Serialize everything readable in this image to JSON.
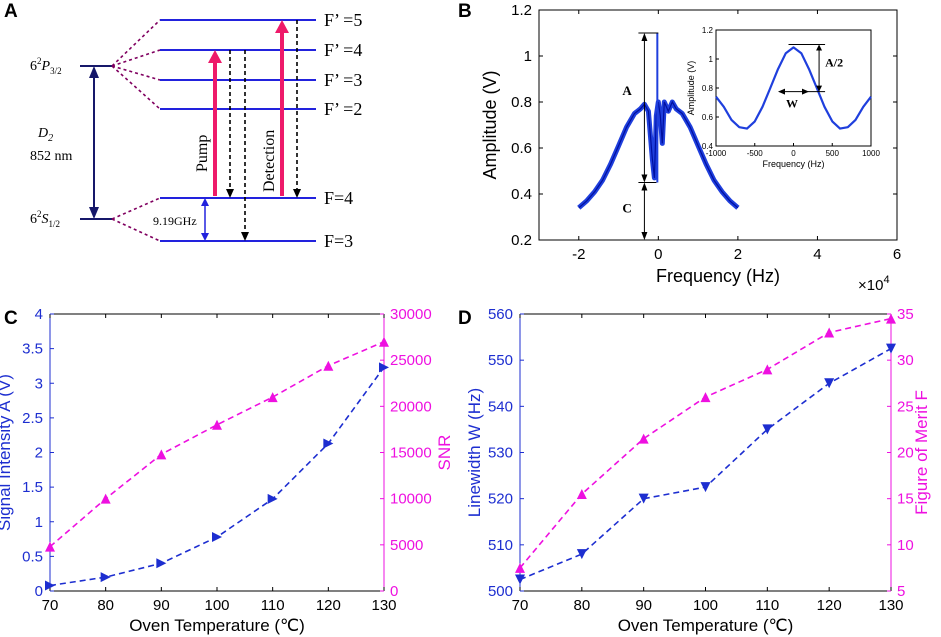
{
  "panels": {
    "A": {
      "letter": "A",
      "upper_state": {
        "n": "6",
        "sup": "2",
        "L": "P",
        "sub": "3/2"
      },
      "lower_state": {
        "n": "6",
        "sup": "2",
        "L": "S",
        "sub": "1/2"
      },
      "d2_label": "D",
      "d2_sub": "2",
      "d2_wavelength": "852 nm",
      "hyperfine_splitting": "9.19GHz",
      "upper_levels": [
        "F’ =5",
        "F’ =4",
        "F’ =3",
        "F’ =2"
      ],
      "lower_levels": [
        "F=4",
        "F=3"
      ],
      "pump_label": "Pump",
      "detection_label": "Detection",
      "colors": {
        "level": "#2222dd",
        "dash": "#800060",
        "pump": "#ee1a6a",
        "d2_arrow": "#16186a"
      }
    },
    "B": {
      "letter": "B",
      "multiplier": "×10",
      "multiplier_exp": "4",
      "label_A": "A",
      "label_C": "C",
      "inset_label_half": "A/2",
      "inset_label_w": "W"
    },
    "C": {
      "letter": "C"
    },
    "D": {
      "letter": "D"
    }
  },
  "chart_data": [
    {
      "panel": "B",
      "type": "line",
      "title": "",
      "xlabel": "Frequency (Hz)",
      "ylabel": "Amplitude (V)",
      "xlim": [
        -3,
        6
      ],
      "ylim": [
        0.2,
        1.2
      ],
      "xticks": [
        "-2",
        "0",
        "2",
        "4",
        "6"
      ],
      "yticks": [
        "0.2",
        "0.4",
        "0.6",
        "0.8",
        "1",
        "1.2"
      ],
      "x_multiplier": "×10^4",
      "series": [
        {
          "name": "Amplitude",
          "color": "#1f3fdd",
          "x": [
            -2.0,
            -1.8,
            -1.6,
            -1.4,
            -1.2,
            -1.0,
            -0.8,
            -0.6,
            -0.45,
            -0.35,
            -0.25,
            -0.15,
            -0.1,
            -0.05,
            0.0,
            0.05,
            0.1,
            0.15,
            0.25,
            0.35,
            0.45,
            0.6,
            0.8,
            1.0,
            1.2,
            1.4,
            1.6,
            1.8,
            2.0
          ],
          "y": [
            0.34,
            0.37,
            0.41,
            0.46,
            0.53,
            0.61,
            0.69,
            0.75,
            0.77,
            0.79,
            0.76,
            0.55,
            0.47,
            0.74,
            0.8,
            0.74,
            0.62,
            0.8,
            0.76,
            0.8,
            0.77,
            0.75,
            0.69,
            0.61,
            0.53,
            0.46,
            0.41,
            0.37,
            0.34
          ]
        }
      ],
      "annotations": [
        {
          "label": "A",
          "from": 0.45,
          "to": 1.1
        },
        {
          "label": "C",
          "from": 0.2,
          "to": 0.45
        }
      ]
    },
    {
      "panel": "B-inset",
      "type": "line",
      "xlabel": "Frequency (Hz)",
      "ylabel": "Amplitude (V)",
      "xlim": [
        -1000,
        1000
      ],
      "ylim": [
        0.4,
        1.2
      ],
      "xticks": [
        "-1000",
        "-500",
        "0",
        "500",
        "1000"
      ],
      "yticks": [
        "0.4",
        "0.6",
        "0.8",
        "1",
        "1.2"
      ],
      "series": [
        {
          "name": "Amplitude",
          "color": "#1f3fdd",
          "x": [
            -1000,
            -900,
            -800,
            -700,
            -600,
            -500,
            -400,
            -300,
            -200,
            -100,
            0,
            100,
            200,
            300,
            400,
            500,
            600,
            700,
            800,
            900,
            1000
          ],
          "y": [
            0.74,
            0.67,
            0.58,
            0.53,
            0.52,
            0.57,
            0.67,
            0.8,
            0.93,
            1.04,
            1.08,
            1.04,
            0.93,
            0.8,
            0.67,
            0.57,
            0.52,
            0.53,
            0.58,
            0.67,
            0.74
          ]
        }
      ],
      "annotations": [
        {
          "label": "A/2",
          "from": 0.775,
          "to": 1.1
        },
        {
          "label": "W",
          "from": -200,
          "to": 200
        }
      ]
    },
    {
      "panel": "C",
      "type": "line",
      "xlabel": "Oven Temperature (℃)",
      "ylabel": "Signal Intensity A (V)",
      "ylabel_right": "SNR",
      "xlim": [
        70,
        130
      ],
      "ylim": [
        0,
        4
      ],
      "ylim_right": [
        0,
        30000
      ],
      "xticks": [
        "70",
        "80",
        "90",
        "100",
        "110",
        "120",
        "130"
      ],
      "yticks": [
        "0",
        "0.5",
        "1",
        "1.5",
        "2",
        "2.5",
        "3",
        "3.5",
        "4"
      ],
      "yticks_right": [
        "0",
        "5000",
        "10000",
        "15000",
        "20000",
        "25000",
        "30000"
      ],
      "series": [
        {
          "name": "Signal Intensity A",
          "axis": "left",
          "color": "#1d2ed0",
          "marker": "triangle-right",
          "x": [
            70,
            80,
            90,
            100,
            110,
            120,
            130
          ],
          "y": [
            0.08,
            0.2,
            0.4,
            0.78,
            1.33,
            2.13,
            3.23
          ]
        },
        {
          "name": "SNR",
          "axis": "right",
          "color": "#ee10e0",
          "marker": "triangle-up",
          "x": [
            70,
            80,
            90,
            100,
            110,
            120,
            130
          ],
          "y": [
            4800,
            10000,
            14800,
            18000,
            21000,
            24400,
            27000
          ]
        }
      ]
    },
    {
      "panel": "D",
      "type": "line",
      "xlabel": "Oven Temperature (℃)",
      "ylabel": "Linewidth W (Hz)",
      "ylabel_right": "Figure of Merit F",
      "xlim": [
        70,
        130
      ],
      "ylim": [
        500,
        560
      ],
      "ylim_right": [
        5,
        35
      ],
      "xticks": [
        "70",
        "80",
        "90",
        "100",
        "110",
        "120",
        "130"
      ],
      "yticks": [
        "500",
        "510",
        "520",
        "530",
        "540",
        "550",
        "560"
      ],
      "yticks_right": [
        "5",
        "10",
        "15",
        "20",
        "25",
        "30",
        "35"
      ],
      "series": [
        {
          "name": "Linewidth W",
          "axis": "left",
          "color": "#1d2ed0",
          "marker": "triangle-down",
          "x": [
            70,
            80,
            90,
            100,
            110,
            120,
            130
          ],
          "y": [
            502.5,
            508.0,
            520.0,
            522.5,
            535.0,
            545.0,
            552.5
          ]
        },
        {
          "name": "Figure of Merit F",
          "axis": "right",
          "color": "#ee10e0",
          "marker": "triangle-up",
          "x": [
            70,
            80,
            90,
            100,
            110,
            120,
            130
          ],
          "y": [
            7.5,
            15.5,
            21.5,
            26.0,
            29.0,
            33.0,
            34.5
          ]
        }
      ]
    }
  ]
}
